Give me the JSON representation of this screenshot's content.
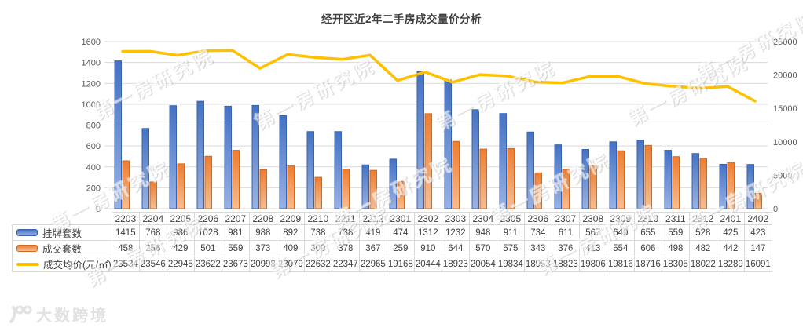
{
  "title": "经开区近2年二手房成交量价分析",
  "watermark_text": "第一房研究院",
  "logo_text": "大数跨境",
  "chart_data": {
    "type": "bar",
    "subtype": "bar+line combo with data table",
    "title": "经开区近2年二手房成交量价分析",
    "categories": [
      "2203",
      "2204",
      "2205",
      "2206",
      "2207",
      "2208",
      "2209",
      "2210",
      "2211",
      "2212",
      "2301",
      "2302",
      "2303",
      "2304",
      "2305",
      "2306",
      "2307",
      "2308",
      "2309",
      "2310",
      "2311",
      "2312",
      "2401",
      "2402"
    ],
    "series": [
      {
        "id": "listed",
        "name": "挂牌套数",
        "type": "bar",
        "axis": "left",
        "color": "#4472C4",
        "color_light": "#9AB1E2",
        "border": "#3763B0",
        "values": [
          1415,
          768,
          986,
          1028,
          981,
          988,
          892,
          738,
          738,
          419,
          474,
          1312,
          1232,
          948,
          911,
          734,
          611,
          567,
          640,
          655,
          559,
          528,
          425,
          423
        ]
      },
      {
        "id": "sold",
        "name": "成交套数",
        "type": "bar",
        "axis": "left",
        "color": "#ED7D31",
        "color_light": "#F5BE94",
        "border": "#D1691F",
        "values": [
          458,
          256,
          429,
          501,
          559,
          373,
          409,
          300,
          378,
          367,
          259,
          910,
          644,
          570,
          575,
          343,
          376,
          413,
          554,
          606,
          498,
          482,
          442,
          147
        ]
      },
      {
        "id": "avg-price",
        "name": "成交均价(元/㎡)",
        "type": "line",
        "axis": "right",
        "color": "#FFC000",
        "values": [
          23534,
          23546,
          22945,
          23622,
          23673,
          20998,
          23079,
          22632,
          22347,
          22965,
          19168,
          20444,
          18923,
          20054,
          19834,
          18953,
          18823,
          19806,
          19816,
          18716,
          18305,
          18022,
          18289,
          16091
        ]
      }
    ],
    "left_axis": {
      "min": 0,
      "max": 1600,
      "step": 200,
      "tick_color": "#595959"
    },
    "right_axis": {
      "min": 0,
      "max": 25000,
      "step": 5000,
      "tick_color": "#595959"
    },
    "grid": true,
    "gridline_color": "#D9D9D9",
    "legend_position": "table-left"
  }
}
